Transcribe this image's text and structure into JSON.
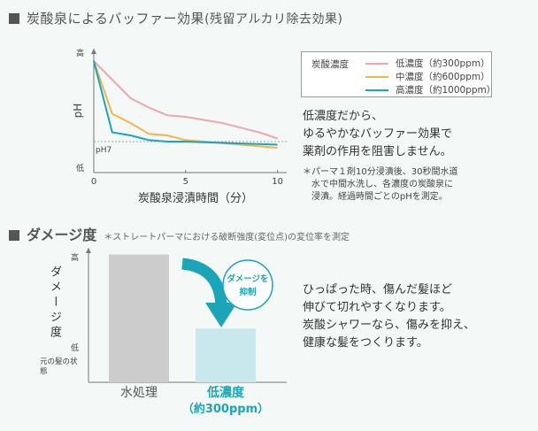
{
  "header1": {
    "title": "炭酸泉によるバッファー効果",
    "subtitle": "(残留アルカリ除去効果)"
  },
  "header2": {
    "title": "ダメージ度",
    "note": "＊ストレートパーマにおける破断強度(変位点)の変位率を測定"
  },
  "chart_data": [
    {
      "type": "line",
      "xlabel": "炭酸泉浸漬時間（分）",
      "ylabel": "pH",
      "y_top_label": "高",
      "y_bottom_label": "低",
      "ref_label": "pH7",
      "ref_value": 7,
      "ylim": [
        6,
        10
      ],
      "xlim": [
        0,
        10.5
      ],
      "x_ticks": [
        0,
        5,
        10
      ],
      "x_tick_labels": [
        "0",
        "5",
        "10"
      ],
      "legend_title": "炭酸濃度",
      "series": [
        {
          "name": "低濃度（約300ppm）",
          "color": "#eba8b0",
          "x": [
            0,
            1,
            2,
            3,
            4,
            5,
            6,
            7,
            8,
            9,
            10
          ],
          "y": [
            9.6,
            9.0,
            8.4,
            8.1,
            7.85,
            7.8,
            7.7,
            7.6,
            7.45,
            7.3,
            7.1
          ]
        },
        {
          "name": "中濃度（約600ppm）",
          "color": "#f0b54e",
          "x": [
            0,
            1,
            2,
            3,
            4,
            5,
            6,
            7,
            8,
            9,
            10
          ],
          "y": [
            9.6,
            7.9,
            7.6,
            7.25,
            7.2,
            7.05,
            7.0,
            6.95,
            6.9,
            6.85,
            6.8
          ]
        },
        {
          "name": "高濃度（約1000ppm）",
          "color": "#1aa6b8",
          "x": [
            0,
            1,
            2,
            3,
            4,
            5,
            6,
            7,
            8,
            9,
            10
          ],
          "y": [
            9.6,
            7.3,
            7.2,
            7.05,
            7.0,
            7.0,
            6.98,
            6.96,
            6.94,
            6.92,
            6.9
          ]
        }
      ]
    },
    {
      "type": "bar",
      "ylabel": "ダメージ度",
      "y_top_label": "高",
      "y_bottom_label": "低",
      "baseline_label": "元の髪の状態",
      "categories": [
        "水処理",
        "低濃度（約300ppm）"
      ],
      "category_lines": [
        [
          "水処理"
        ],
        [
          "低濃度",
          "（約300ppm）"
        ]
      ],
      "category_colors": [
        "#555555",
        "#1aa6b8"
      ],
      "values": [
        95,
        40
      ],
      "bar_colors": [
        "#cccccc",
        "#c8e8ee"
      ],
      "ylim": [
        0,
        100
      ],
      "annotation": [
        "ダメージを",
        "抑制"
      ]
    }
  ],
  "text": {
    "desc1": [
      "低濃度だから、",
      "ゆるやかなバッファー効果で",
      "薬剤の作用を阻害しません。"
    ],
    "footnote": [
      "＊パーマ１剤10分浸漬後、30秒間水道",
      "水で中間水洗し、各濃度の炭酸泉に",
      "浸漬。経過時間ごとのpHを測定。"
    ],
    "desc2": [
      "ひっぱった時、傷んだ髪ほど",
      "伸びて切れやすくなります。",
      "炭酸シャワーなら、傷みを抑え、",
      "健康な髪をつくります。"
    ]
  }
}
